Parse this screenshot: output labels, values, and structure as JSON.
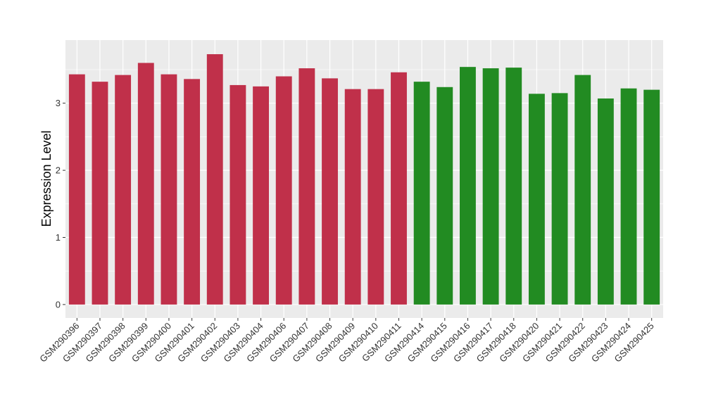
{
  "chart_data": {
    "type": "bar",
    "title": "",
    "xlabel": "",
    "ylabel": "Expression Level",
    "ylim": [
      -0.2,
      3.94
    ],
    "yticks": [
      0,
      1,
      2,
      3
    ],
    "grid": true,
    "legend": "none",
    "categories": [
      "GSM290396",
      "GSM290397",
      "GSM290398",
      "GSM290399",
      "GSM290400",
      "GSM290401",
      "GSM290402",
      "GSM290403",
      "GSM290404",
      "GSM290406",
      "GSM290407",
      "GSM290408",
      "GSM290409",
      "GSM290410",
      "GSM290411",
      "GSM290414",
      "GSM290415",
      "GSM290416",
      "GSM290417",
      "GSM290418",
      "GSM290420",
      "GSM290421",
      "GSM290422",
      "GSM290423",
      "GSM290424",
      "GSM290425"
    ],
    "values": [
      3.43,
      3.32,
      3.42,
      3.6,
      3.43,
      3.36,
      3.73,
      3.27,
      3.25,
      3.4,
      3.52,
      3.37,
      3.21,
      3.21,
      3.46,
      3.32,
      3.24,
      3.54,
      3.52,
      3.53,
      3.14,
      3.15,
      3.42,
      3.07,
      3.22,
      3.2
    ],
    "groups": [
      "A",
      "A",
      "A",
      "A",
      "A",
      "A",
      "A",
      "A",
      "A",
      "A",
      "A",
      "A",
      "A",
      "A",
      "A",
      "B",
      "B",
      "B",
      "B",
      "B",
      "B",
      "B",
      "B",
      "B",
      "B",
      "B"
    ],
    "colors": {
      "A": "#c0304a",
      "B": "#228b22"
    }
  }
}
